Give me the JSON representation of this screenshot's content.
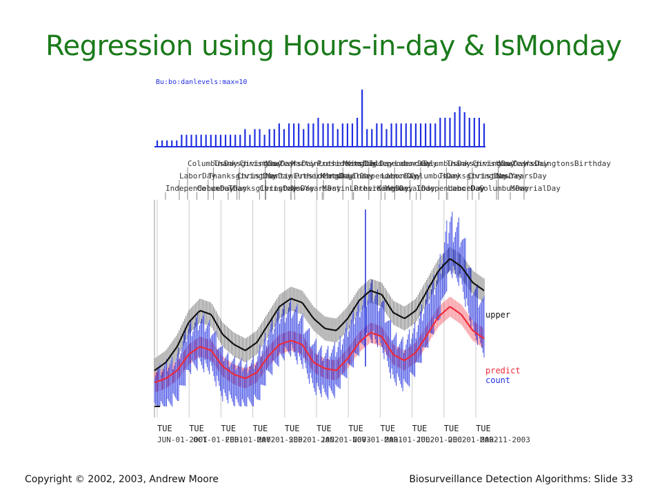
{
  "slide": {
    "title": "Regression using Hours-in-day & IsMonday",
    "copyright": "Copyright © 2002, 2003, Andrew  Moore",
    "slide_label": "Biosurveillance Detection Algorithms: Slide 33"
  },
  "colors": {
    "title": "#1a7a1a",
    "count": "#1f2fe0",
    "predict": "#ee2a3a",
    "upper": "#111111",
    "band": "#555555",
    "grid": "#c8c8c8"
  },
  "chart_data": [
    {
      "type": "bar",
      "legend": "Bu:bo:danlevels:max=10",
      "description_values_are_relative": true,
      "ylim": [
        0,
        10
      ],
      "x_range": [
        "01-JUN-2001",
        "11-MAR-2003"
      ],
      "series": [
        {
          "values": [
            1,
            1,
            1,
            1,
            1,
            2,
            2,
            2,
            2,
            2,
            2,
            2,
            2,
            2,
            2,
            2,
            2,
            2,
            3,
            2,
            3,
            3,
            2,
            3,
            3,
            4,
            3,
            4,
            4,
            4,
            3,
            4,
            4,
            5,
            4,
            4,
            4,
            3,
            4,
            4,
            4,
            5,
            10,
            3,
            3,
            4,
            4,
            3,
            4,
            4,
            4,
            4,
            4,
            4,
            4,
            4,
            4,
            4,
            5,
            5,
            5,
            6,
            7,
            6,
            5,
            5,
            5,
            4
          ]
        }
      ]
    },
    {
      "type": "timeline",
      "holidays_row1": [
        "ColumbusDay",
        "ThanksgivingDay",
        "ChristmasDay",
        "NewYearsDay",
        "MartinLutherKingDay",
        "PresidentsDay",
        "MemorialDay",
        "IndependenceDay",
        "LaborDay",
        "ColumbusDay",
        "ThanksgivingDay",
        "ChristmasDay",
        "NewYearsDay",
        "WashingtonsBirthday"
      ],
      "holidays_row2": [
        "LaborDay",
        "ThanksgivingDay",
        "ChristmasDay",
        "MartinLutherKingDay",
        "PresidentsDay",
        "MemorialDay",
        "IndependenceDay",
        "LaborDay",
        "ColumbusDay",
        "ThanksgivingDay",
        "ChristmasDay",
        "NewYearsDay"
      ],
      "holidays_row3": [
        "IndependenceDay",
        "ColumbusDay",
        "ThanksgivingDay",
        "ChristmasDay",
        "NewYearsDay",
        "MartinLutherKingDay",
        "PresidentsDay",
        "MemorialDay",
        "IndependenceDay",
        "LaborDay",
        "ColumbusDay",
        "MemorialDay"
      ]
    },
    {
      "type": "line",
      "series_names": [
        "upper",
        "predict",
        "count"
      ],
      "x_ticks_day": [
        "TUE",
        "TUE",
        "TUE",
        "TUE",
        "TUE",
        "TUE",
        "TUE",
        "TUE",
        "TUE",
        "TUE",
        "TUE"
      ],
      "x_ticks_date": [
        "JUN-01-2001",
        "OCT-01-2001",
        "FEB-01-2002",
        "MAY-01-2002",
        "SEP-01-2002",
        "JAN-01-2003",
        "NOV-01-2001",
        "MAR-01-2002",
        "JUL-01-2002",
        "DEC-01-2002",
        "MAR-11-2003"
      ],
      "x_ticks_date_note": "tick date labels overlap in the original image",
      "ylim": [
        0,
        100
      ],
      "series": [
        {
          "name": "upper",
          "values": [
            18,
            22,
            30,
            42,
            48,
            46,
            36,
            31,
            28,
            32,
            41,
            50,
            54,
            52,
            44,
            39,
            38,
            44,
            53,
            58,
            56,
            47,
            44,
            48,
            58,
            68,
            74,
            70,
            62,
            58
          ]
        },
        {
          "name": "predict",
          "values": [
            12,
            14,
            18,
            26,
            30,
            28,
            20,
            16,
            14,
            17,
            25,
            31,
            33,
            31,
            22,
            19,
            18,
            24,
            32,
            37,
            35,
            26,
            23,
            27,
            36,
            45,
            50,
            46,
            38,
            34
          ]
        },
        {
          "name": "count",
          "values": [
            10,
            12,
            16,
            30,
            34,
            30,
            18,
            14,
            12,
            15,
            28,
            36,
            40,
            34,
            22,
            18,
            20,
            30,
            40,
            48,
            42,
            26,
            22,
            30,
            44,
            56,
            80,
            74,
            50,
            40
          ]
        }
      ]
    }
  ]
}
